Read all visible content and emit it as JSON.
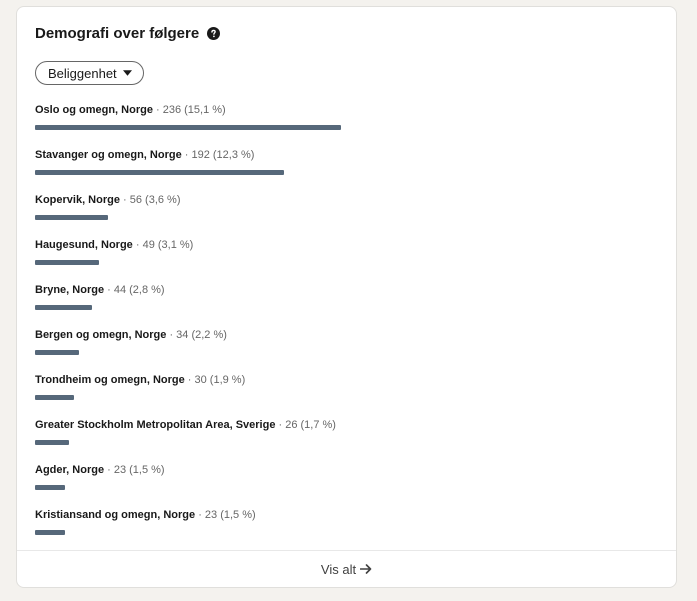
{
  "card": {
    "title": "Demografi over følgere",
    "help_icon": "question-circle-icon"
  },
  "filter": {
    "label": "Beliggenhet",
    "icon": "caret-down-icon"
  },
  "locations": [
    {
      "name": "Oslo og omegn, Norge",
      "meta": " · 236 (15,1 %)",
      "count": 236
    },
    {
      "name": "Stavanger og omegn, Norge",
      "meta": " · 192 (12,3 %)",
      "count": 192
    },
    {
      "name": "Kopervik, Norge",
      "meta": " · 56 (3,6 %)",
      "count": 56
    },
    {
      "name": "Haugesund, Norge",
      "meta": " · 49 (3,1 %)",
      "count": 49
    },
    {
      "name": "Bryne, Norge",
      "meta": " · 44 (2,8 %)",
      "count": 44
    },
    {
      "name": "Bergen og omegn, Norge",
      "meta": " · 34 (2,2 %)",
      "count": 34
    },
    {
      "name": "Trondheim og omegn, Norge",
      "meta": " · 30 (1,9 %)",
      "count": 30
    },
    {
      "name": "Greater Stockholm Metropolitan Area, Sverige",
      "meta": " · 26 (1,7 %)",
      "count": 26
    },
    {
      "name": "Agder, Norge",
      "meta": " · 23 (1,5 %)",
      "count": 23
    },
    {
      "name": "Kristiansand og omegn, Norge",
      "meta": " · 23 (1,5 %)",
      "count": 23
    }
  ],
  "footer": {
    "label": "Vis alt",
    "icon": "arrow-right-icon"
  },
  "colors": {
    "bar": "#56687a",
    "background": "#f4f2ee"
  }
}
